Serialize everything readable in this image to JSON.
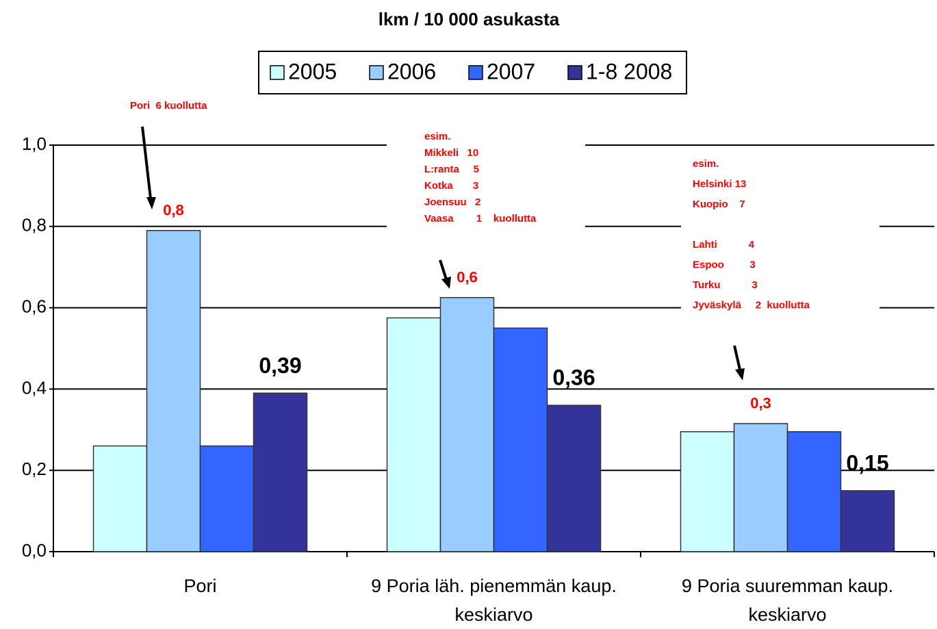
{
  "chart_data": {
    "type": "bar",
    "title": "lkm / 10 000 asukasta",
    "categories": [
      [
        "Pori"
      ],
      [
        "9 Poria läh. pienemmän kaup.",
        "keskiarvo"
      ],
      [
        "9 Poria suuremman kaup.",
        "keskiarvo"
      ]
    ],
    "series": [
      {
        "name": "2005",
        "color": "#ccffff",
        "values": [
          0.26,
          0.575,
          0.295
        ]
      },
      {
        "name": "2006",
        "color": "#99ccff",
        "values": [
          0.79,
          0.625,
          0.315
        ],
        "value_labels": [
          "0,8",
          "0,6",
          "0,3"
        ],
        "label_color": "#ff0000"
      },
      {
        "name": "2007",
        "color": "#3366ff",
        "values": [
          0.26,
          0.55,
          0.295
        ]
      },
      {
        "name": "1-8 2008",
        "color": "#333399",
        "values": [
          0.39,
          0.36,
          0.15
        ],
        "value_labels": [
          "0,39",
          "0,36",
          "0,15"
        ],
        "label_color": "#000000"
      }
    ],
    "ylim": [
      0,
      1
    ],
    "yticks": [
      {
        "value": 0,
        "label": "0,0"
      },
      {
        "value": 0.2,
        "label": "0,2"
      },
      {
        "value": 0.4,
        "label": "0,4"
      },
      {
        "value": 0.6,
        "label": "0,6"
      },
      {
        "value": 0.8,
        "label": "0,8"
      },
      {
        "value": 1,
        "label": "1,0"
      }
    ],
    "grid": true,
    "annotations": [
      [
        "Pori  6 kuollutta"
      ],
      [
        "esim.",
        "Mikkeli   10",
        "L:ranta     5",
        "Kotka       3",
        "Joensuu   2",
        "Vaasa        1    kuollutta"
      ],
      [
        "esim.",
        "Helsinki 13",
        "Kuopio    7",
        "Lahti           4",
        "Espoo         3",
        "Turku           3",
        "Jyväskylä     2  kuollutta"
      ]
    ]
  }
}
